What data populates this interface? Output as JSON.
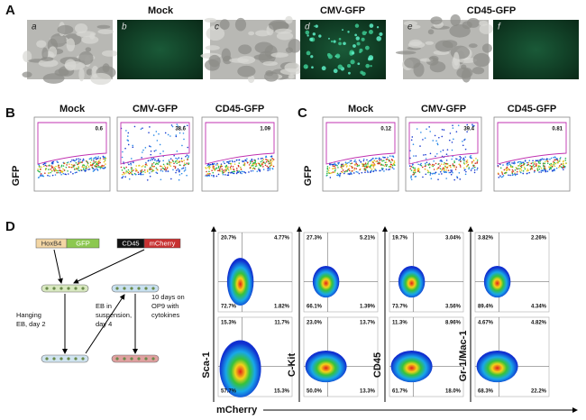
{
  "panel_a": {
    "label": "A",
    "groups": [
      "Mock",
      "CMV-GFP",
      "CD45-GFP"
    ],
    "images": [
      "a",
      "b",
      "c",
      "d",
      "e",
      "f"
    ]
  },
  "panel_b": {
    "label": "B",
    "y_axis": "GFP",
    "plots": [
      {
        "title": "Mock",
        "gate": "0.6"
      },
      {
        "title": "CMV-GFP",
        "gate": "38.6"
      },
      {
        "title": "CD45-GFP",
        "gate": "1.09"
      }
    ]
  },
  "panel_c": {
    "label": "C",
    "y_axis": "GFP",
    "plots": [
      {
        "title": "Mock",
        "gate": "0.12"
      },
      {
        "title": "CMV-GFP",
        "gate": "39.4"
      },
      {
        "title": "CD45-GFP",
        "gate": "0.81"
      }
    ]
  },
  "panel_d": {
    "label": "D",
    "constructs": [
      [
        "HoxB4",
        "GFP"
      ],
      [
        "CD45",
        "mCherry"
      ]
    ],
    "steps": [
      [
        "Hanging",
        "EB, day 2"
      ],
      [
        "EB in",
        "suspension,",
        "day 4"
      ],
      [
        "10 days on",
        "OP9 with",
        "cytokines"
      ]
    ],
    "x_axis": "mCherry",
    "columns": [
      {
        "y_axis": "Sca-1",
        "rows": [
          [
            "20.7%",
            "4.77%",
            "72.7%",
            "1.82%"
          ],
          [
            "15.3%",
            "11.7%",
            "57.7%",
            "15.3%"
          ]
        ]
      },
      {
        "y_axis": "C-Kit",
        "rows": [
          [
            "27.3%",
            "5.21%",
            "66.1%",
            "1.39%"
          ],
          [
            "23.0%",
            "13.7%",
            "50.0%",
            "13.3%"
          ]
        ]
      },
      {
        "y_axis": "CD45",
        "rows": [
          [
            "19.7%",
            "3.04%",
            "73.7%",
            "3.56%"
          ],
          [
            "11.3%",
            "8.96%",
            "61.7%",
            "18.0%"
          ]
        ]
      },
      {
        "y_axis": "Gr-1/Mac-1",
        "rows": [
          [
            "3.82%",
            "2.26%",
            "89.4%",
            "4.34%"
          ],
          [
            "4.67%",
            "4.82%",
            "68.3%",
            "22.2%"
          ]
        ]
      }
    ]
  }
}
